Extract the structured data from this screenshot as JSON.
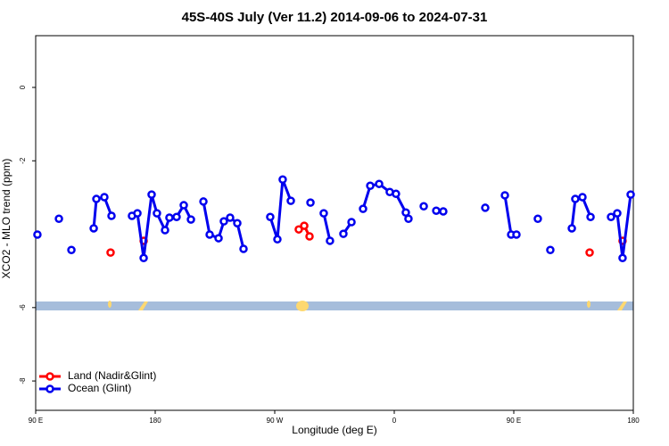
{
  "chart_data": {
    "type": "line",
    "title": "45S-40S July (Ver 11.2)   2014-09-06 to 2024-07-31",
    "x_label": "Longitude (deg E)",
    "y_label": "XCO2 - MLO trend (ppm)",
    "xlim": [
      90,
      540
    ],
    "ylim": [
      1.41,
      -8.8
    ],
    "xticks": [
      {
        "value": 90,
        "label": "90 E"
      },
      {
        "value": 180,
        "label": "180"
      },
      {
        "value": 270,
        "label": "90 W"
      },
      {
        "value": 360,
        "label": "0"
      },
      {
        "value": 450,
        "label": "90 E"
      },
      {
        "value": 540,
        "label": "180"
      }
    ],
    "yticks": [
      0,
      -2,
      -6,
      -8
    ],
    "legend": "bottom-left",
    "series": [
      {
        "name": "Land (Nadir&Glint)",
        "color": "#ff0000",
        "x": [
          146.4,
          null,
          171.3,
          null,
          288.1,
          292.2,
          296.2,
          null,
          507.1,
          null,
          531.9
        ],
        "values": [
          -4.5,
          null,
          -4.18,
          null,
          -3.87,
          -3.77,
          -4.06,
          null,
          -4.5,
          null,
          -4.18
        ]
      },
      {
        "name": "Ocean (Glint)",
        "color": "#0000ee",
        "x": [
          91.3,
          null,
          107.5,
          null,
          116.9,
          null,
          133.7,
          135.7,
          141.7,
          147.1,
          null,
          162.5,
          166.6,
          171.3,
          177.3,
          181.3,
          187.4,
          190.7,
          196.1,
          201.5,
          206.9,
          null,
          216.3,
          221.0,
          227.7,
          231.7,
          236.4,
          241.8,
          246.5,
          null,
          266.6,
          272.0,
          276.0,
          282.1,
          null,
          296.9,
          null,
          306.9,
          311.6,
          null,
          321.7,
          327.8,
          null,
          336.5,
          341.9,
          348.6,
          356.6,
          361.3,
          368.7,
          370.7,
          null,
          382.2,
          null,
          391.6,
          396.9,
          null,
          428.5,
          null,
          443.3,
          448.0,
          452.0,
          null,
          468.1,
          null,
          477.5,
          null,
          493.7,
          496.3,
          501.7,
          507.8,
          null,
          523.2,
          527.9,
          531.9,
          538.0
        ],
        "values": [
          -4.01,
          null,
          -3.58,
          null,
          -4.43,
          null,
          -3.84,
          -3.04,
          -2.99,
          -3.5,
          null,
          -3.5,
          -3.43,
          -4.65,
          -2.92,
          -3.43,
          -3.89,
          -3.55,
          -3.53,
          -3.21,
          -3.6,
          null,
          -3.11,
          -4.01,
          -4.11,
          -3.65,
          -3.55,
          -3.7,
          -4.4,
          null,
          -3.53,
          -4.14,
          -2.51,
          -3.09,
          null,
          -3.14,
          null,
          -3.43,
          -4.18,
          null,
          -3.99,
          -3.67,
          null,
          -3.31,
          -2.68,
          -2.63,
          -2.85,
          -2.9,
          -3.41,
          -3.58,
          null,
          -3.24,
          null,
          -3.36,
          -3.38,
          null,
          -3.28,
          null,
          -2.94,
          -4.01,
          -4.01,
          null,
          -3.58,
          null,
          -4.43,
          null,
          -3.84,
          -3.04,
          -2.99,
          -3.53,
          null,
          -3.53,
          -3.43,
          -4.65,
          -2.92
        ]
      }
    ]
  }
}
